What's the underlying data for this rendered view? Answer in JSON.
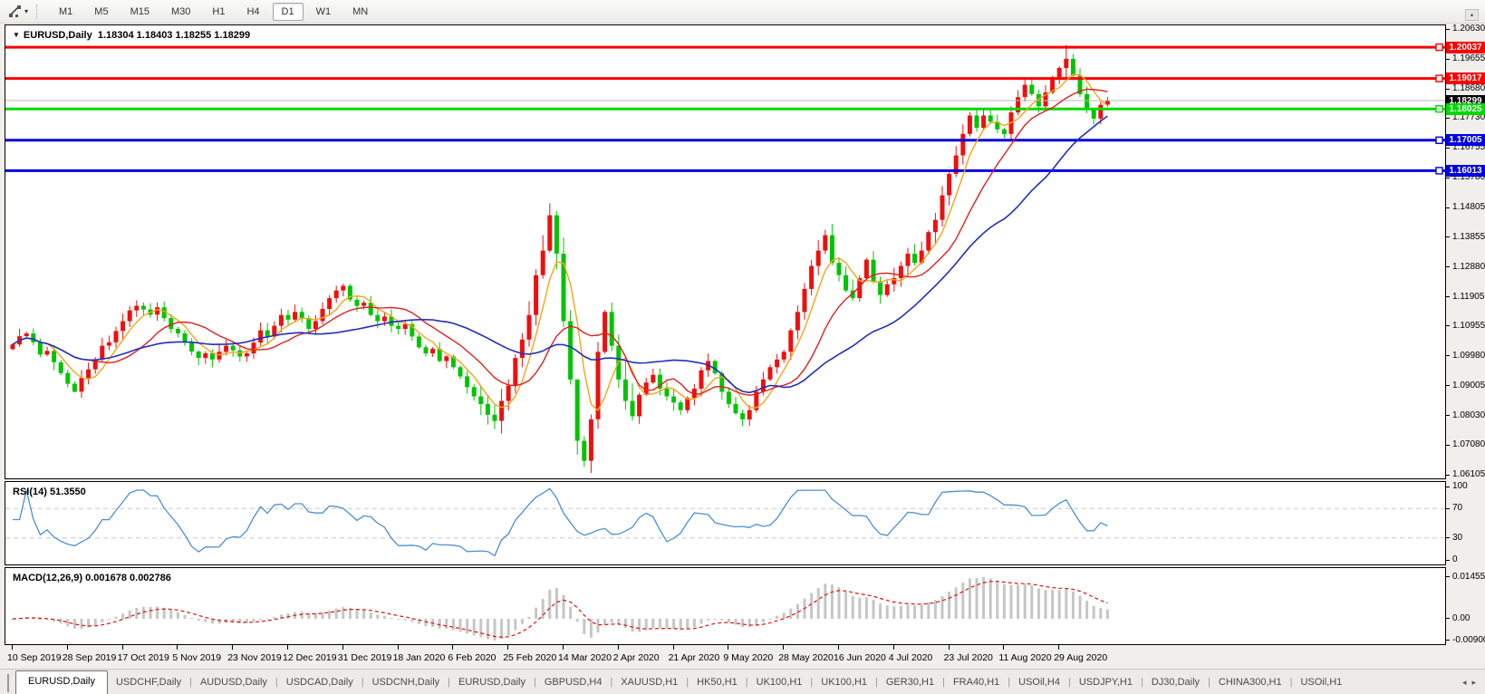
{
  "toolbar": {
    "timeframes": [
      "M1",
      "M5",
      "M15",
      "M30",
      "H1",
      "H4",
      "D1",
      "W1",
      "MN"
    ],
    "active": "D1"
  },
  "chart": {
    "symbol_label": "EURUSD,Daily",
    "ohlc_label": "1.18304 1.18403 1.18255 1.18299",
    "open": "1.18304",
    "high": "1.18403",
    "low": "1.18255",
    "close": "1.18299"
  },
  "price_axis": {
    "ticks": [
      "1.20630",
      "1.19655",
      "1.18680",
      "1.17730",
      "1.16755",
      "1.15780",
      "1.14805",
      "1.13855",
      "1.12880",
      "1.11905",
      "1.10955",
      "1.09980",
      "1.09005",
      "1.08030",
      "1.07080",
      "1.06105"
    ]
  },
  "current_price": {
    "label": "1.18299",
    "price": 1.18299,
    "line_color": "#b8b8b8",
    "badge_color": "#000000"
  },
  "levels": [
    {
      "label": "1.20037",
      "price": 1.20037,
      "color": "#fe0000",
      "kind": "resistance-line"
    },
    {
      "label": "1.19017",
      "price": 1.19017,
      "color": "#fe0000",
      "kind": "resistance-line"
    },
    {
      "label": "1.18025",
      "price": 1.18025,
      "color": "#00d900",
      "kind": "support-line"
    },
    {
      "label": "1.17005",
      "price": 1.17005,
      "color": "#0000e0",
      "kind": "support-line"
    },
    {
      "label": "1.16013",
      "price": 1.16013,
      "color": "#0000e0",
      "kind": "support-line"
    }
  ],
  "rsi": {
    "label": "RSI(14) 51.3550",
    "period_label": "14",
    "value": "51.3550",
    "axis_ticks": [
      "100",
      "70",
      "30",
      "0"
    ],
    "guide_levels": [
      70,
      30
    ],
    "line_color": "#4d8fd1",
    "guide_color": "#c9c9c9"
  },
  "macd": {
    "label": "MACD(12,26,9) 0.001678 0.002786",
    "params": "12,26,9",
    "values": [
      "0.001678",
      "0.002786"
    ],
    "axis_ticks": [
      "0.014556",
      "0.00",
      "-0.009001"
    ],
    "hist_color": "#c6c6c6",
    "signal_color": "#e01010"
  },
  "date_axis": {
    "labels": [
      "10 Sep 2019",
      "28 Sep 2019",
      "17 Oct 2019",
      "5 Nov 2019",
      "23 Nov 2019",
      "12 Dec 2019",
      "31 Dec 2019",
      "18 Jan 2020",
      "6 Feb 2020",
      "25 Feb 2020",
      "14 Mar 2020",
      "2 Apr 2020",
      "21 Apr 2020",
      "9 May 2020",
      "28 May 2020",
      "16 Jun 2020",
      "4 Jul 2020",
      "23 Jul 2020",
      "11 Aug 2020",
      "29 Aug 2020"
    ]
  },
  "tabs": {
    "active_index": 0,
    "items": [
      "EURUSD,Daily",
      "USDCHF,Daily",
      "AUDUSD,Daily",
      "USDCAD,Daily",
      "USDCNH,Daily",
      "EURUSD,Daily",
      "GBPUSD,H4",
      "XAUUSD,H1",
      "HK50,H1",
      "UK100,H1",
      "UK100,H1",
      "GER30,H1",
      "FRA40,H1",
      "USOil,H4",
      "USDJPY,H1",
      "DJ30,Daily",
      "CHINA300,H1",
      "USOil,H1"
    ],
    "left_arrow": "◂",
    "right_arrow": "▸",
    "mini_up_arrow": "▴"
  },
  "chart_data": {
    "type": "candlestick",
    "symbol": "EURUSD",
    "timeframe": "Daily",
    "price_range": [
      1.06105,
      1.2063
    ],
    "x_start_label": "10 Sep 2019",
    "x_end_label": "29 Aug 2020",
    "candles_per_date_label": 8,
    "opens_rule": "previous_close",
    "bull_color": "#ee0f0f",
    "bear_color": "#00c400",
    "closes": [
      1.1035,
      1.1062,
      1.1071,
      1.1042,
      1.1002,
      1.1014,
      1.0977,
      1.0942,
      1.0907,
      1.0881,
      1.0926,
      1.0954,
      1.0986,
      1.1031,
      1.1042,
      1.1079,
      1.1111,
      1.1146,
      1.1161,
      1.1149,
      1.1132,
      1.1156,
      1.1121,
      1.1086,
      1.1071,
      1.1041,
      1.1012,
      1.0991,
      1.1006,
      1.0986,
      1.1011,
      1.1031,
      1.1016,
      1.0996,
      1.1006,
      1.1041,
      1.1081,
      1.1061,
      1.1096,
      1.1131,
      1.1116,
      1.1141,
      1.1121,
      1.1086,
      1.1111,
      1.1151,
      1.1186,
      1.1211,
      1.1226,
      1.1181,
      1.1161,
      1.1171,
      1.1131,
      1.1111,
      1.1126,
      1.1096,
      1.1086,
      1.1101,
      1.1061,
      1.1026,
      1.1006,
      1.1021,
      1.0981,
      1.0996,
      1.0961,
      1.0931,
      1.0896,
      1.0866,
      1.0841,
      1.0806,
      1.0786,
      1.0851,
      1.0901,
      1.0991,
      1.1051,
      1.1131,
      1.1261,
      1.1341,
      1.1456,
      1.1331,
      1.1111,
      1.0921,
      1.0721,
      1.0656,
      1.0791,
      1.1011,
      1.1141,
      1.1031,
      1.0921,
      1.0851,
      1.0801,
      1.0871,
      1.0911,
      1.0936,
      1.0891,
      1.0866,
      1.0846,
      1.0821,
      1.0861,
      1.0891,
      1.0951,
      1.0981,
      1.0941,
      1.0881,
      1.0841,
      1.0811,
      1.0791,
      1.0821,
      1.0881,
      1.0921,
      1.0961,
      1.0986,
      1.1011,
      1.1081,
      1.1141,
      1.1216,
      1.1291,
      1.1341,
      1.1391,
      1.1301,
      1.1261,
      1.1211,
      1.1186,
      1.1251,
      1.1311,
      1.1241,
      1.1196,
      1.1231,
      1.1251,
      1.1291,
      1.1331,
      1.1301,
      1.1341,
      1.1401,
      1.1441,
      1.1521,
      1.1591,
      1.1651,
      1.1721,
      1.1781,
      1.1741,
      1.1781,
      1.1761,
      1.1736,
      1.1721,
      1.1791,
      1.1841,
      1.1881,
      1.1851,
      1.1811,
      1.1856,
      1.1906,
      1.1936,
      1.1966,
      1.1911,
      1.1851,
      1.1801,
      1.1771,
      1.1816,
      1.183
    ],
    "wick_overrides": {
      "9": [
        1.0915,
        1.0879
      ],
      "78": [
        1.1495,
        1.1335
      ],
      "82": [
        1.088,
        1.0676
      ],
      "83": [
        1.0736,
        1.0636
      ],
      "86": [
        1.1147,
        1.1005
      ],
      "153": [
        1.2011,
        1.1901
      ],
      "157": [
        1.1798,
        1.1752
      ]
    },
    "moving_averages": [
      {
        "period": 5,
        "color": "#f7a31b",
        "name": "fast-ma"
      },
      {
        "period": 12,
        "color": "#dd2020",
        "name": "medium-ma"
      },
      {
        "period": 26,
        "color": "#2030bb",
        "name": "slow-ma"
      }
    ]
  }
}
